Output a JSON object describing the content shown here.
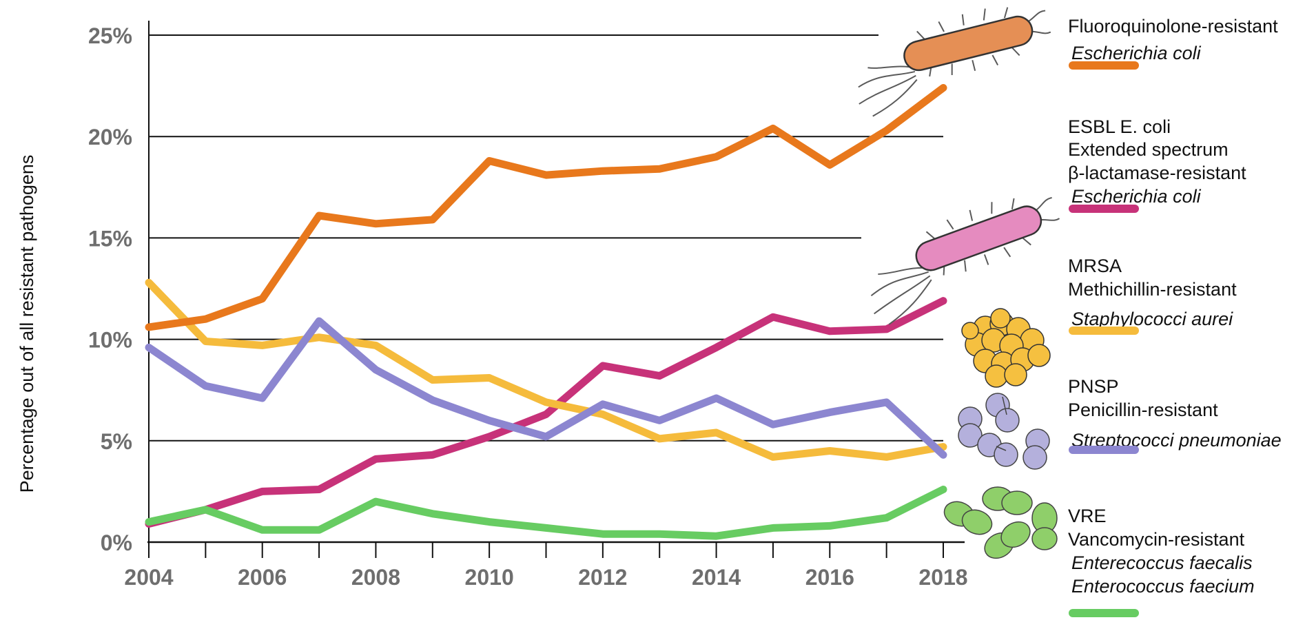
{
  "chart_data": {
    "type": "line",
    "title": "",
    "xlabel": "",
    "ylabel": "Percentage out of all resistant pathogens",
    "x": [
      2004,
      2005,
      2006,
      2007,
      2008,
      2009,
      2010,
      2011,
      2012,
      2013,
      2014,
      2015,
      2016,
      2017,
      2018
    ],
    "x_ticks": [
      "2004",
      "2006",
      "2008",
      "2010",
      "2012",
      "2014",
      "2016",
      "2018"
    ],
    "y_ticks": [
      "0%",
      "5%",
      "10%",
      "15%",
      "20%",
      "25%"
    ],
    "ylim": [
      0,
      25
    ],
    "grid": "horizontal",
    "legend_position": "right",
    "series": [
      {
        "id": "fq",
        "legend": [
          "Fluoroquinolone-resistant",
          "Escherichia coli"
        ],
        "italic": [
          false,
          true
        ],
        "color": "#e8781c",
        "icon": "orange-bacillus-icon",
        "values": [
          10.6,
          11.0,
          12.0,
          16.1,
          15.7,
          15.9,
          18.8,
          18.1,
          18.3,
          18.4,
          19.0,
          20.4,
          18.6,
          20.3,
          22.4
        ]
      },
      {
        "id": "esbl",
        "legend": [
          "ESBL E. coli",
          "Extended spectrum",
          "β-lactamase-resistant",
          "Escherichia coli"
        ],
        "italic": [
          false,
          false,
          false,
          true
        ],
        "color": "#c73279",
        "icon": "pink-bacillus-icon",
        "values": [
          0.9,
          1.6,
          2.5,
          2.6,
          4.1,
          4.3,
          5.2,
          6.3,
          8.7,
          8.2,
          9.6,
          11.1,
          10.4,
          10.5,
          11.9
        ]
      },
      {
        "id": "mrsa",
        "legend": [
          "MRSA",
          "Methichillin-resistant",
          "Staphylococci aurei"
        ],
        "italic": [
          false,
          false,
          true
        ],
        "color": "#f5bb3c",
        "icon": "yellow-cocci-cluster-icon",
        "values": [
          12.8,
          9.9,
          9.7,
          10.1,
          9.7,
          8.0,
          8.1,
          6.9,
          6.3,
          5.1,
          5.4,
          4.2,
          4.5,
          4.2,
          4.7
        ]
      },
      {
        "id": "pnsp",
        "legend": [
          "PNSP",
          "Penicillin-resistant",
          "Streptococci pneumoniae"
        ],
        "italic": [
          false,
          false,
          true
        ],
        "color": "#8c86d0",
        "icon": "purple-diplococci-icon",
        "values": [
          9.6,
          7.7,
          7.1,
          10.9,
          8.5,
          7.0,
          6.0,
          5.2,
          6.8,
          6.0,
          7.1,
          5.8,
          6.4,
          6.9,
          4.3
        ]
      },
      {
        "id": "vre",
        "legend": [
          "VRE",
          "Vancomycin-resistant",
          "Enterecoccus faecalis",
          "Enterococcus faecium"
        ],
        "italic": [
          false,
          false,
          true,
          true
        ],
        "color": "#67cc62",
        "icon": "green-enterococci-icon",
        "values": [
          1.0,
          1.6,
          0.6,
          0.6,
          2.0,
          1.4,
          1.0,
          0.7,
          0.4,
          0.4,
          0.3,
          0.7,
          0.8,
          1.2,
          2.6
        ]
      }
    ]
  }
}
